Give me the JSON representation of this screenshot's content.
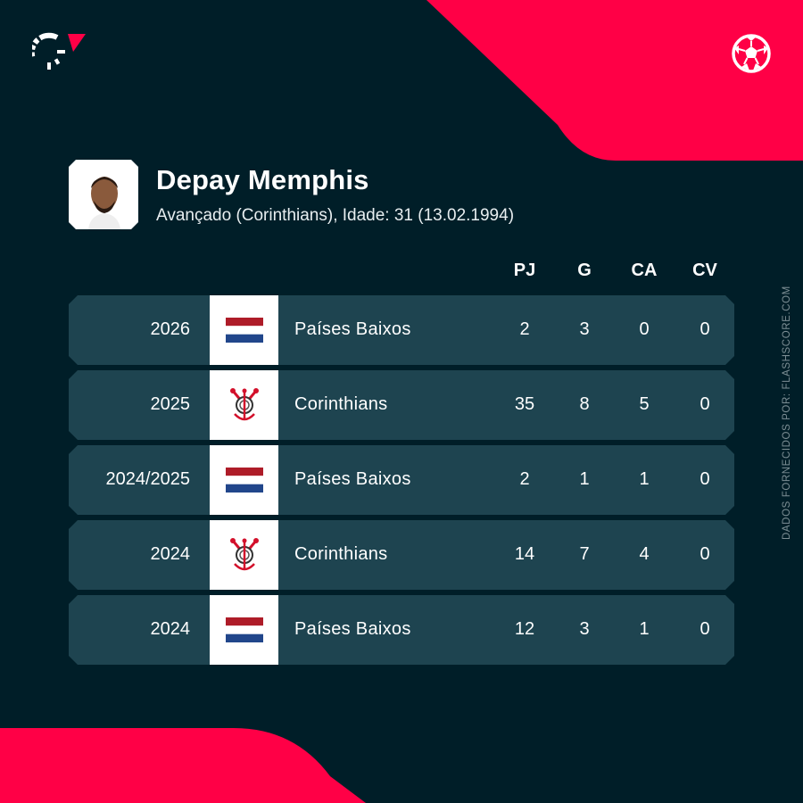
{
  "brand": {
    "accent": "#ff0046",
    "background": "#001e28",
    "row_color": "#1e4450",
    "logo_icon": "flashscore-logo",
    "sport_icon": "soccer-ball-icon"
  },
  "player": {
    "name": "Depay Memphis",
    "subtitle": "Avançado (Corinthians), Idade: 31 (13.02.1994)"
  },
  "table": {
    "headers": [
      "PJ",
      "G",
      "CA",
      "CV"
    ],
    "rows": [
      {
        "season": "2026",
        "team": "Países Baixos",
        "crest": "netherlands-flag",
        "pj": "2",
        "g": "3",
        "ca": "0",
        "cv": "0"
      },
      {
        "season": "2025",
        "team": "Corinthians",
        "crest": "corinthians-crest",
        "pj": "35",
        "g": "8",
        "ca": "5",
        "cv": "0"
      },
      {
        "season": "2024/2025",
        "team": "Países Baixos",
        "crest": "netherlands-flag",
        "pj": "2",
        "g": "1",
        "ca": "1",
        "cv": "0"
      },
      {
        "season": "2024",
        "team": "Corinthians",
        "crest": "corinthians-crest",
        "pj": "14",
        "g": "7",
        "ca": "4",
        "cv": "0"
      },
      {
        "season": "2024",
        "team": "Países Baixos",
        "crest": "netherlands-flag",
        "pj": "12",
        "g": "3",
        "ca": "1",
        "cv": "0"
      }
    ]
  },
  "credit": "DADOS FORNECIDOS POR: FLASHSCORE.COM"
}
